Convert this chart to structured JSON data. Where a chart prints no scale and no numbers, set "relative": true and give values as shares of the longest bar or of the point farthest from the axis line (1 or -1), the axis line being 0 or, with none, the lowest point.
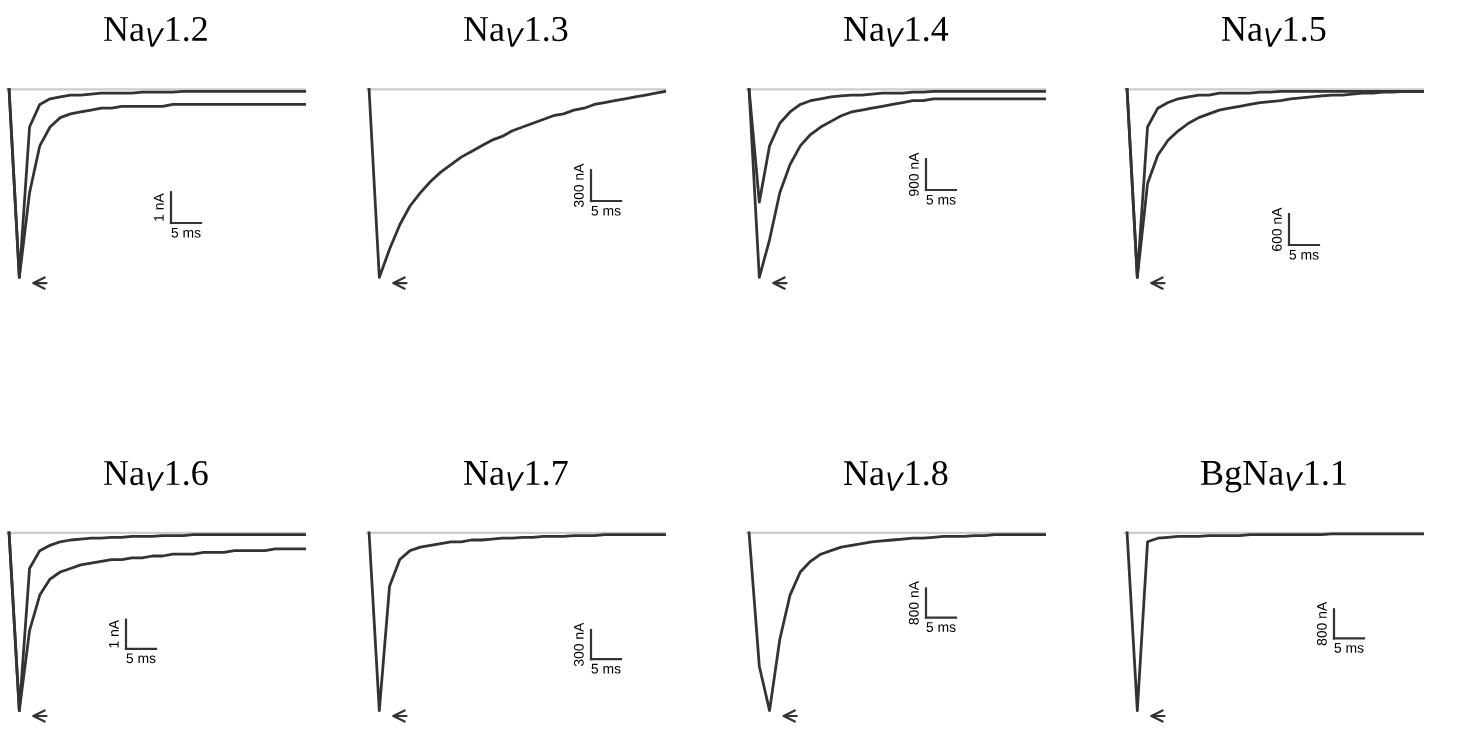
{
  "chart_data": [
    {
      "type": "line",
      "relative": true,
      "title": "Na$_{V}$1.2",
      "categories": [
        null,
        null,
        null,
        null,
        null,
        null,
        null,
        null,
        null,
        null,
        null,
        null,
        null,
        null,
        null,
        null,
        null,
        null,
        null,
        null,
        null,
        null,
        null,
        null,
        null,
        null,
        null,
        null,
        null,
        null
      ],
      "series": [
        {
          "color": "#333333",
          "values": [
            0,
            -1,
            -0.2,
            -0.08,
            -0.05,
            -0.04,
            -0.03,
            -0.03,
            -0.025,
            -0.02,
            -0.02,
            -0.02,
            -0.02,
            -0.015,
            -0.015,
            -0.015,
            -0.015,
            -0.01,
            -0.01,
            -0.01,
            -0.01,
            -0.01,
            -0.01,
            -0.01,
            -0.01,
            -0.01,
            -0.01,
            -0.01,
            -0.01,
            -0.01
          ]
        },
        {
          "color": "#333333",
          "values": [
            0,
            -1,
            -0.55,
            -0.3,
            -0.2,
            -0.15,
            -0.13,
            -0.12,
            -0.11,
            -0.1,
            -0.1,
            -0.09,
            -0.09,
            -0.09,
            -0.09,
            -0.09,
            -0.08,
            -0.08,
            -0.08,
            -0.08,
            -0.08,
            -0.08,
            -0.08,
            -0.08,
            -0.08,
            -0.08,
            -0.08,
            -0.08,
            -0.08,
            -0.08
          ]
        }
      ],
      "ref_lines": [
        {
          "axis": "y",
          "value": 0,
          "color": "#cccccc"
        }
      ],
      "annotations": [
        "1 nA",
        "5 ms"
      ]
    },
    {
      "type": "line",
      "relative": true,
      "title": "Na$_{V}$1.3",
      "categories": [
        null,
        null,
        null,
        null,
        null,
        null,
        null,
        null,
        null,
        null,
        null,
        null,
        null,
        null,
        null,
        null,
        null,
        null,
        null,
        null,
        null,
        null,
        null,
        null,
        null,
        null,
        null,
        null,
        null,
        null
      ],
      "series": [
        {
          "color": "#333333",
          "values": [
            0,
            -1,
            -0.85,
            -0.72,
            -0.62,
            -0.55,
            -0.49,
            -0.44,
            -0.4,
            -0.36,
            -0.33,
            -0.3,
            -0.27,
            -0.25,
            -0.22,
            -0.2,
            -0.18,
            -0.16,
            -0.14,
            -0.13,
            -0.11,
            -0.1,
            -0.08,
            -0.07,
            -0.06,
            -0.05,
            -0.04,
            -0.03,
            -0.02,
            -0.01
          ]
        }
      ],
      "ref_lines": [
        {
          "axis": "y",
          "value": 0,
          "color": "#cccccc"
        }
      ],
      "annotations": [
        "300 nA",
        "5 ms"
      ]
    },
    {
      "type": "line",
      "relative": true,
      "title": "Na$_{V}$1.4",
      "categories": [
        null,
        null,
        null,
        null,
        null,
        null,
        null,
        null,
        null,
        null,
        null,
        null,
        null,
        null,
        null,
        null,
        null,
        null,
        null,
        null,
        null,
        null,
        null,
        null,
        null,
        null,
        null,
        null,
        null,
        null
      ],
      "series": [
        {
          "color": "#333333",
          "values": [
            0,
            -0.6,
            -0.3,
            -0.18,
            -0.12,
            -0.08,
            -0.06,
            -0.05,
            -0.04,
            -0.035,
            -0.03,
            -0.03,
            -0.025,
            -0.02,
            -0.02,
            -0.02,
            -0.015,
            -0.015,
            -0.01,
            -0.01,
            -0.01,
            -0.01,
            -0.01,
            -0.01,
            -0.01,
            -0.01,
            -0.01,
            -0.01,
            -0.01,
            -0.01
          ]
        },
        {
          "color": "#333333",
          "values": [
            0,
            -1,
            -0.8,
            -0.55,
            -0.4,
            -0.3,
            -0.24,
            -0.2,
            -0.17,
            -0.14,
            -0.12,
            -0.11,
            -0.1,
            -0.09,
            -0.08,
            -0.07,
            -0.06,
            -0.06,
            -0.05,
            -0.05,
            -0.05,
            -0.05,
            -0.05,
            -0.05,
            -0.05,
            -0.05,
            -0.05,
            -0.05,
            -0.05,
            -0.05
          ]
        }
      ],
      "ref_lines": [
        {
          "axis": "y",
          "value": 0,
          "color": "#cccccc"
        }
      ],
      "annotations": [
        "900 nA",
        "5 ms"
      ]
    },
    {
      "type": "line",
      "relative": true,
      "title": "Na$_{V}$1.5",
      "categories": [
        null,
        null,
        null,
        null,
        null,
        null,
        null,
        null,
        null,
        null,
        null,
        null,
        null,
        null,
        null,
        null,
        null,
        null,
        null,
        null,
        null,
        null,
        null,
        null,
        null,
        null,
        null,
        null,
        null,
        null
      ],
      "series": [
        {
          "color": "#333333",
          "values": [
            0,
            -1,
            -0.2,
            -0.1,
            -0.07,
            -0.05,
            -0.04,
            -0.03,
            -0.03,
            -0.02,
            -0.02,
            -0.02,
            -0.02,
            -0.015,
            -0.015,
            -0.01,
            -0.01,
            -0.01,
            -0.01,
            -0.01,
            -0.01,
            -0.01,
            -0.01,
            -0.01,
            -0.01,
            -0.01,
            -0.01,
            -0.01,
            -0.01,
            -0.01
          ]
        },
        {
          "color": "#333333",
          "values": [
            0,
            -1,
            -0.5,
            -0.35,
            -0.27,
            -0.22,
            -0.18,
            -0.15,
            -0.13,
            -0.11,
            -0.1,
            -0.09,
            -0.08,
            -0.07,
            -0.065,
            -0.06,
            -0.05,
            -0.045,
            -0.04,
            -0.035,
            -0.03,
            -0.03,
            -0.025,
            -0.02,
            -0.02,
            -0.015,
            -0.015,
            -0.01,
            -0.01,
            -0.01
          ]
        }
      ],
      "ref_lines": [
        {
          "axis": "y",
          "value": 0,
          "color": "#cccccc"
        }
      ],
      "annotations": [
        "600 nA",
        "5 ms"
      ]
    },
    {
      "type": "line",
      "relative": true,
      "title": "Na$_{V}$1.6",
      "categories": [
        null,
        null,
        null,
        null,
        null,
        null,
        null,
        null,
        null,
        null,
        null,
        null,
        null,
        null,
        null,
        null,
        null,
        null,
        null,
        null,
        null,
        null,
        null,
        null,
        null,
        null,
        null,
        null,
        null,
        null
      ],
      "series": [
        {
          "color": "#333333",
          "values": [
            0,
            -1,
            -0.2,
            -0.1,
            -0.07,
            -0.05,
            -0.04,
            -0.035,
            -0.03,
            -0.03,
            -0.025,
            -0.025,
            -0.02,
            -0.02,
            -0.02,
            -0.015,
            -0.015,
            -0.015,
            -0.01,
            -0.01,
            -0.01,
            -0.01,
            -0.01,
            -0.01,
            -0.01,
            -0.01,
            -0.01,
            -0.01,
            -0.01,
            -0.01
          ]
        },
        {
          "color": "#333333",
          "values": [
            0,
            -1,
            -0.55,
            -0.35,
            -0.26,
            -0.22,
            -0.2,
            -0.18,
            -0.17,
            -0.16,
            -0.15,
            -0.15,
            -0.14,
            -0.14,
            -0.13,
            -0.13,
            -0.12,
            -0.12,
            -0.12,
            -0.11,
            -0.11,
            -0.11,
            -0.1,
            -0.1,
            -0.1,
            -0.1,
            -0.09,
            -0.09,
            -0.09,
            -0.09
          ]
        }
      ],
      "ref_lines": [
        {
          "axis": "y",
          "value": 0,
          "color": "#cccccc"
        }
      ],
      "annotations": [
        "1 nA",
        "5 ms"
      ]
    },
    {
      "type": "line",
      "relative": true,
      "title": "Na$_{V}$1.7",
      "categories": [
        null,
        null,
        null,
        null,
        null,
        null,
        null,
        null,
        null,
        null,
        null,
        null,
        null,
        null,
        null,
        null,
        null,
        null,
        null,
        null,
        null,
        null,
        null,
        null,
        null,
        null,
        null,
        null,
        null,
        null
      ],
      "series": [
        {
          "color": "#333333",
          "values": [
            0,
            -1,
            -0.3,
            -0.15,
            -0.1,
            -0.08,
            -0.07,
            -0.06,
            -0.05,
            -0.05,
            -0.04,
            -0.04,
            -0.035,
            -0.03,
            -0.03,
            -0.025,
            -0.025,
            -0.02,
            -0.02,
            -0.02,
            -0.015,
            -0.015,
            -0.015,
            -0.01,
            -0.01,
            -0.01,
            -0.01,
            -0.01,
            -0.01,
            -0.01
          ]
        }
      ],
      "ref_lines": [
        {
          "axis": "y",
          "value": 0,
          "color": "#cccccc"
        }
      ],
      "annotations": [
        "300 nA",
        "5 ms"
      ]
    },
    {
      "type": "line",
      "relative": true,
      "title": "Na$_{V}$1.8",
      "categories": [
        null,
        null,
        null,
        null,
        null,
        null,
        null,
        null,
        null,
        null,
        null,
        null,
        null,
        null,
        null,
        null,
        null,
        null,
        null,
        null,
        null,
        null,
        null,
        null,
        null,
        null,
        null,
        null,
        null,
        null
      ],
      "series": [
        {
          "color": "#333333",
          "values": [
            0,
            -0.75,
            -1,
            -0.6,
            -0.35,
            -0.22,
            -0.16,
            -0.12,
            -0.1,
            -0.08,
            -0.07,
            -0.06,
            -0.05,
            -0.045,
            -0.04,
            -0.035,
            -0.03,
            -0.03,
            -0.025,
            -0.02,
            -0.02,
            -0.02,
            -0.015,
            -0.015,
            -0.01,
            -0.01,
            -0.01,
            -0.01,
            -0.01,
            -0.01
          ]
        }
      ],
      "ref_lines": [
        {
          "axis": "y",
          "value": 0,
          "color": "#cccccc"
        }
      ],
      "annotations": [
        "800 nA",
        "5 ms"
      ]
    },
    {
      "type": "line",
      "relative": true,
      "title": "BgNa$_{V}$1.1",
      "categories": [
        null,
        null,
        null,
        null,
        null,
        null,
        null,
        null,
        null,
        null,
        null,
        null,
        null,
        null,
        null,
        null,
        null,
        null,
        null,
        null,
        null,
        null,
        null,
        null,
        null,
        null,
        null,
        null,
        null,
        null
      ],
      "series": [
        {
          "color": "#333333",
          "values": [
            0,
            -1,
            -0.05,
            -0.03,
            -0.025,
            -0.02,
            -0.02,
            -0.02,
            -0.015,
            -0.015,
            -0.015,
            -0.015,
            -0.01,
            -0.01,
            -0.01,
            -0.01,
            -0.01,
            -0.01,
            -0.01,
            -0.01,
            -0.005,
            -0.005,
            -0.005,
            -0.005,
            -0.005,
            -0.005,
            -0.005,
            -0.005,
            -0.005,
            -0.005
          ]
        }
      ],
      "ref_lines": [
        {
          "axis": "y",
          "value": 0,
          "color": "#cccccc"
        }
      ],
      "annotations": [
        "800 nA",
        "5 ms"
      ]
    }
  ]
}
